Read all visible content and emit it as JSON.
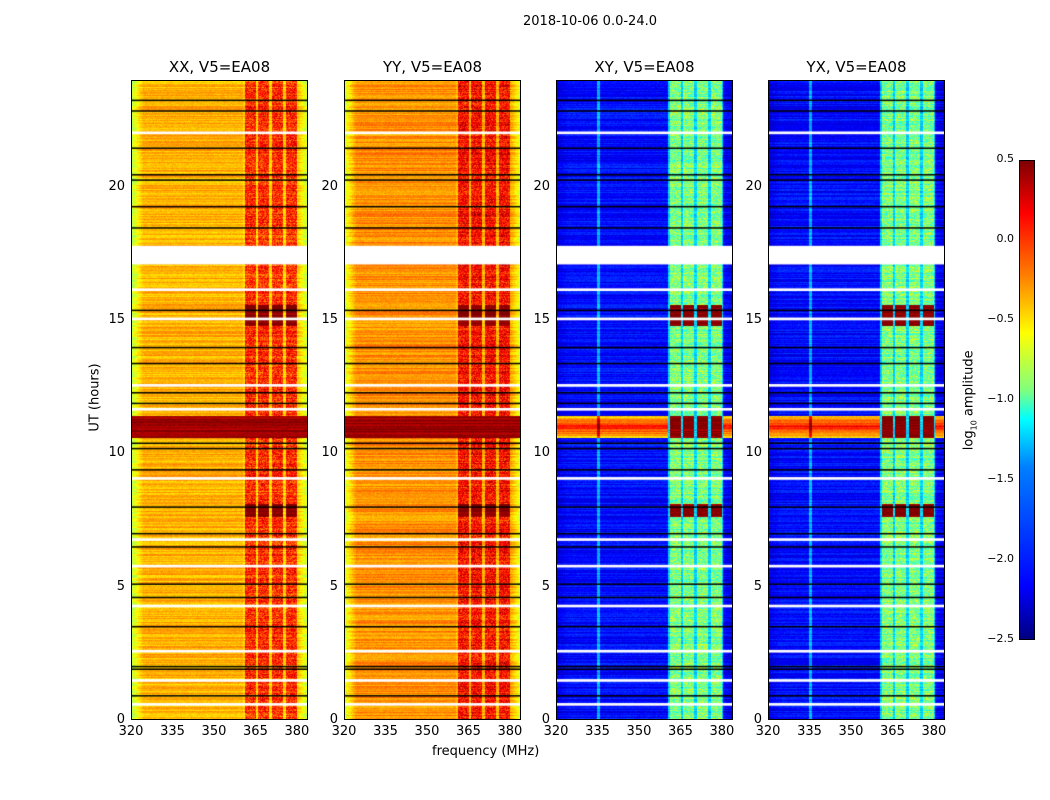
{
  "chart_data": {
    "type": "heatmap",
    "title": "2018-10-06 0.0-24.0",
    "xlabel": "frequency (MHz)",
    "ylabel": "UT (hours)",
    "xlim": [
      320,
      384
    ],
    "ylim": [
      0,
      24
    ],
    "xticks": [
      "320",
      "335",
      "350",
      "365",
      "380"
    ],
    "xtick_values": [
      320,
      335,
      350,
      365,
      380
    ],
    "yticks": [
      "0",
      "5",
      "10",
      "15",
      "20"
    ],
    "ytick_values": [
      0,
      5,
      10,
      15,
      20
    ],
    "colorbar": {
      "label_main": "log",
      "label_sub": "10",
      "label_rest": " amplitude",
      "range": [
        -2.5,
        0.5
      ],
      "ticks": [
        "0.5",
        "0.0",
        "−0.5",
        "−1.0",
        "−1.5",
        "−2.0",
        "−2.5"
      ],
      "tick_values": [
        0.5,
        0.0,
        -0.5,
        -1.0,
        -1.5,
        -2.0,
        -2.5
      ],
      "colormap": "jet"
    },
    "panels": [
      {
        "title": "XX, V5=EA08",
        "base_level": -0.4,
        "edge_level": -0.8,
        "rfi_level": -0.1
      },
      {
        "title": "YY, V5=EA08",
        "base_level": -0.3,
        "edge_level": -0.7,
        "rfi_level": 0.0
      },
      {
        "title": "XY, V5=EA08",
        "base_level": -2.1,
        "edge_level": -2.2,
        "rfi_level": -1.1
      },
      {
        "title": "YX, V5=EA08",
        "base_level": -2.1,
        "edge_level": -2.2,
        "rfi_level": -1.1
      }
    ],
    "rfi_channels_mhz": [
      [
        361,
        365
      ],
      [
        366,
        370
      ],
      [
        371,
        375
      ],
      [
        376,
        380
      ]
    ],
    "strong_rfi_hours": [
      [
        7.6,
        8.1
      ],
      [
        14.8,
        15.6
      ],
      [
        10.6,
        11.4
      ]
    ],
    "broadband_event_hours": [
      10.6,
      11.4
    ],
    "gap_hours": [
      [
        17.1,
        17.8
      ],
      [
        1.4,
        1.5
      ],
      [
        0.5,
        0.6
      ],
      [
        2.5,
        2.6
      ],
      [
        4.2,
        4.3
      ],
      [
        5.7,
        5.8
      ],
      [
        6.7,
        6.8
      ],
      [
        9.0,
        9.1
      ],
      [
        11.6,
        11.7
      ],
      [
        12.5,
        12.6
      ],
      [
        15.0,
        15.1
      ],
      [
        16.1,
        16.2
      ],
      [
        22.0,
        22.1
      ]
    ],
    "flag_hours": [
      0.9,
      1.9,
      2.0,
      3.5,
      4.6,
      5.1,
      6.5,
      7.0,
      8.0,
      9.4,
      10.2,
      10.4,
      11.9,
      12.3,
      13.4,
      14.0,
      15.4,
      18.5,
      19.3,
      20.3,
      20.5,
      21.5,
      22.9,
      23.3
    ]
  }
}
